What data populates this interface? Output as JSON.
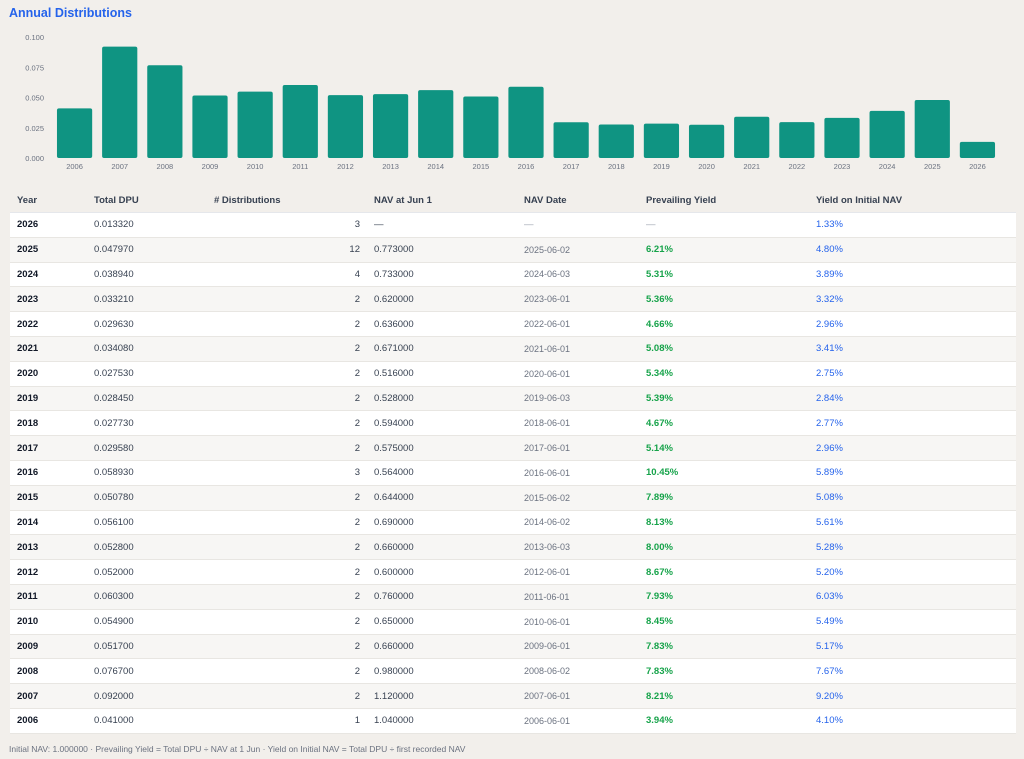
{
  "title": "Annual Distributions",
  "chart_data": {
    "type": "bar",
    "categories": [
      "2006",
      "2007",
      "2008",
      "2009",
      "2010",
      "2011",
      "2012",
      "2013",
      "2014",
      "2015",
      "2016",
      "2017",
      "2018",
      "2019",
      "2020",
      "2021",
      "2022",
      "2023",
      "2024",
      "2025",
      "2026"
    ],
    "values": [
      0.041,
      0.092,
      0.0767,
      0.0517,
      0.0549,
      0.0603,
      0.052,
      0.0528,
      0.0561,
      0.05078,
      0.05893,
      0.02958,
      0.02773,
      0.02845,
      0.02753,
      0.03408,
      0.02963,
      0.03321,
      0.03894,
      0.04797,
      0.01332
    ],
    "ylim": [
      0,
      0.1
    ],
    "yticks": [
      "0.100",
      "0.075",
      "0.050",
      "0.025",
      "0.000"
    ],
    "bar_color": "#0f9482"
  },
  "table": {
    "headers": {
      "year": "Year",
      "dpu": "Total DPU",
      "dist": "# Distributions",
      "nav": "NAV at Jun 1",
      "date": "NAV Date",
      "prev": "Prevailing Yield",
      "init": "Yield on Initial NAV"
    },
    "rows": [
      {
        "year": "2026",
        "dpu": "0.013320",
        "dist": "3",
        "nav": "—",
        "date": "—",
        "prev": "—",
        "init": "1.33%"
      },
      {
        "year": "2025",
        "dpu": "0.047970",
        "dist": "12",
        "nav": "0.773000",
        "date": "2025-06-02",
        "prev": "6.21%",
        "init": "4.80%"
      },
      {
        "year": "2024",
        "dpu": "0.038940",
        "dist": "4",
        "nav": "0.733000",
        "date": "2024-06-03",
        "prev": "5.31%",
        "init": "3.89%"
      },
      {
        "year": "2023",
        "dpu": "0.033210",
        "dist": "2",
        "nav": "0.620000",
        "date": "2023-06-01",
        "prev": "5.36%",
        "init": "3.32%"
      },
      {
        "year": "2022",
        "dpu": "0.029630",
        "dist": "2",
        "nav": "0.636000",
        "date": "2022-06-01",
        "prev": "4.66%",
        "init": "2.96%"
      },
      {
        "year": "2021",
        "dpu": "0.034080",
        "dist": "2",
        "nav": "0.671000",
        "date": "2021-06-01",
        "prev": "5.08%",
        "init": "3.41%"
      },
      {
        "year": "2020",
        "dpu": "0.027530",
        "dist": "2",
        "nav": "0.516000",
        "date": "2020-06-01",
        "prev": "5.34%",
        "init": "2.75%"
      },
      {
        "year": "2019",
        "dpu": "0.028450",
        "dist": "2",
        "nav": "0.528000",
        "date": "2019-06-03",
        "prev": "5.39%",
        "init": "2.84%"
      },
      {
        "year": "2018",
        "dpu": "0.027730",
        "dist": "2",
        "nav": "0.594000",
        "date": "2018-06-01",
        "prev": "4.67%",
        "init": "2.77%"
      },
      {
        "year": "2017",
        "dpu": "0.029580",
        "dist": "2",
        "nav": "0.575000",
        "date": "2017-06-01",
        "prev": "5.14%",
        "init": "2.96%"
      },
      {
        "year": "2016",
        "dpu": "0.058930",
        "dist": "3",
        "nav": "0.564000",
        "date": "2016-06-01",
        "prev": "10.45%",
        "init": "5.89%"
      },
      {
        "year": "2015",
        "dpu": "0.050780",
        "dist": "2",
        "nav": "0.644000",
        "date": "2015-06-02",
        "prev": "7.89%",
        "init": "5.08%"
      },
      {
        "year": "2014",
        "dpu": "0.056100",
        "dist": "2",
        "nav": "0.690000",
        "date": "2014-06-02",
        "prev": "8.13%",
        "init": "5.61%"
      },
      {
        "year": "2013",
        "dpu": "0.052800",
        "dist": "2",
        "nav": "0.660000",
        "date": "2013-06-03",
        "prev": "8.00%",
        "init": "5.28%"
      },
      {
        "year": "2012",
        "dpu": "0.052000",
        "dist": "2",
        "nav": "0.600000",
        "date": "2012-06-01",
        "prev": "8.67%",
        "init": "5.20%"
      },
      {
        "year": "2011",
        "dpu": "0.060300",
        "dist": "2",
        "nav": "0.760000",
        "date": "2011-06-01",
        "prev": "7.93%",
        "init": "6.03%"
      },
      {
        "year": "2010",
        "dpu": "0.054900",
        "dist": "2",
        "nav": "0.650000",
        "date": "2010-06-01",
        "prev": "8.45%",
        "init": "5.49%"
      },
      {
        "year": "2009",
        "dpu": "0.051700",
        "dist": "2",
        "nav": "0.660000",
        "date": "2009-06-01",
        "prev": "7.83%",
        "init": "5.17%"
      },
      {
        "year": "2008",
        "dpu": "0.076700",
        "dist": "2",
        "nav": "0.980000",
        "date": "2008-06-02",
        "prev": "7.83%",
        "init": "7.67%"
      },
      {
        "year": "2007",
        "dpu": "0.092000",
        "dist": "2",
        "nav": "1.120000",
        "date": "2007-06-01",
        "prev": "8.21%",
        "init": "9.20%"
      },
      {
        "year": "2006",
        "dpu": "0.041000",
        "dist": "1",
        "nav": "1.040000",
        "date": "2006-06-01",
        "prev": "3.94%",
        "init": "4.10%"
      }
    ]
  },
  "footer": "Initial NAV: 1.000000  ·  Prevailing Yield = Total DPU ÷ NAV at 1 Jun  ·  Yield on Initial NAV = Total DPU ÷ first recorded NAV"
}
